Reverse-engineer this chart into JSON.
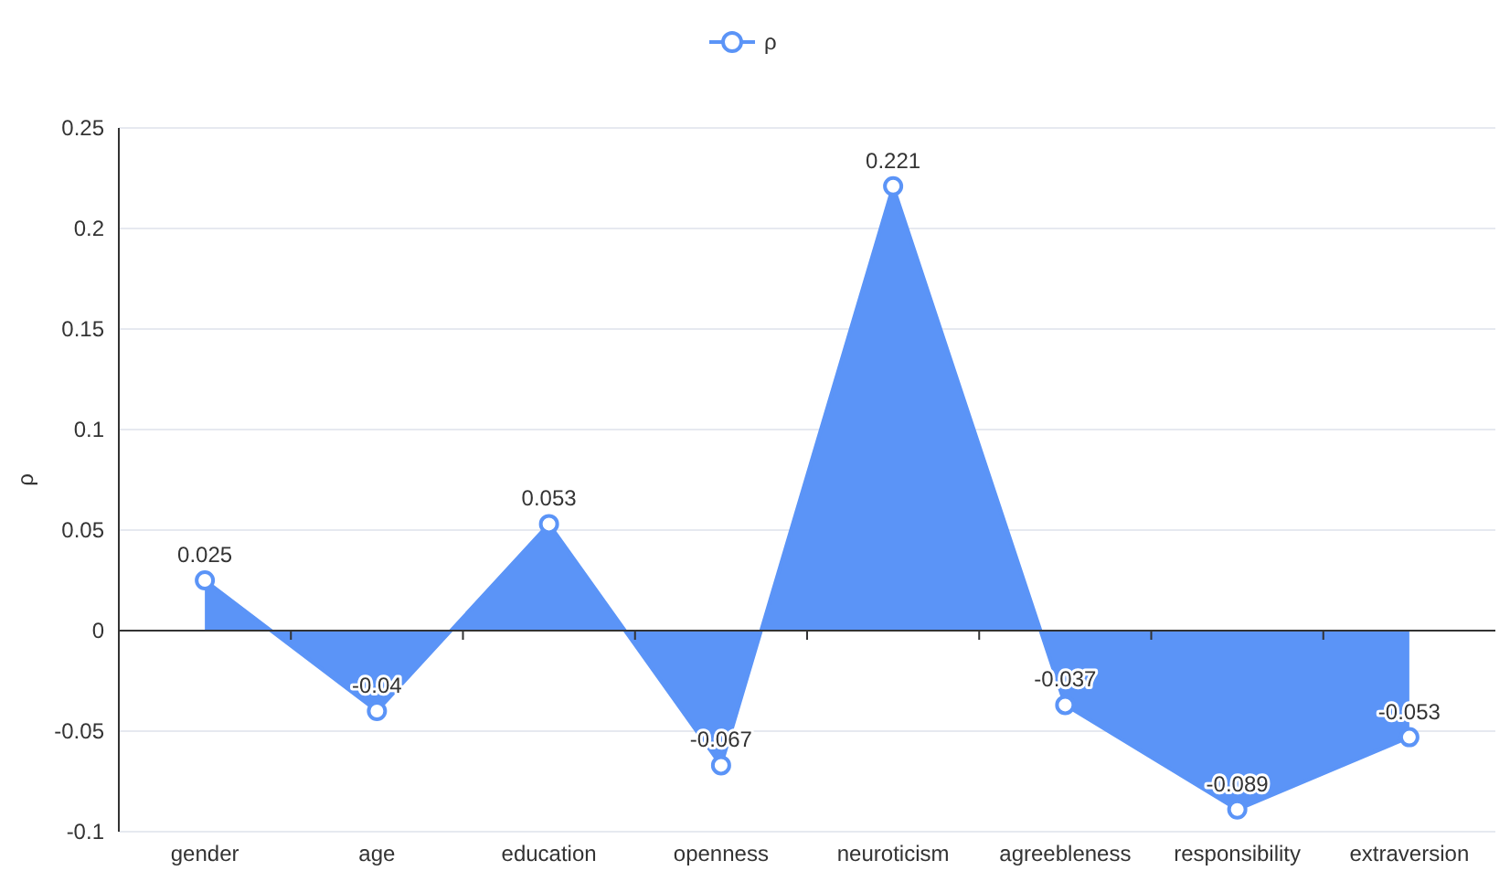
{
  "chart_data": {
    "type": "area",
    "ylabel": "ρ",
    "categories": [
      "gender",
      "age",
      "education",
      "openness",
      "neuroticism",
      "agreebleness",
      "responsibility",
      "extraversion"
    ],
    "series": [
      {
        "name": "ρ",
        "color": "#5b94f7",
        "values": [
          0.025,
          -0.04,
          0.053,
          -0.067,
          0.221,
          -0.037,
          -0.089,
          -0.053
        ]
      }
    ],
    "ylim": [
      -0.1,
      0.25
    ],
    "yticks": [
      -0.1,
      -0.05,
      0,
      0.05,
      0.1,
      0.15,
      0.2,
      0.25
    ],
    "grid": "y",
    "legend": "top",
    "marker": "circle",
    "data_labels": true
  }
}
